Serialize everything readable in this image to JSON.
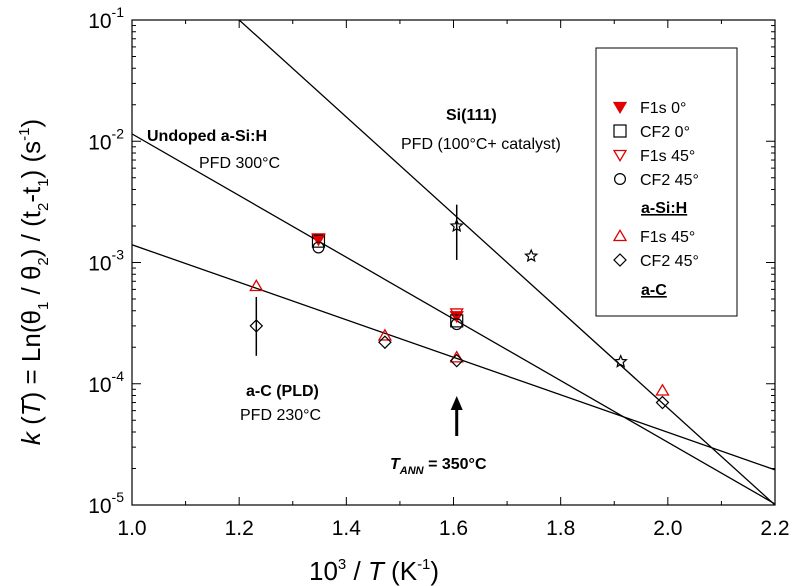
{
  "chart_data": {
    "type": "scatter",
    "title": "",
    "xlabel": {
      "prefix": "10",
      "sup": "3",
      "mid": " / ",
      "var": "T",
      "suffix": "  (K",
      "sup2": "-1",
      "end": ")"
    },
    "ylabel": {
      "k": "k",
      "open": " (",
      "T": "T",
      "mid": ") = Ln(θ",
      "s1": "1",
      "mid2": " / θ",
      "s2": "2",
      "mid3": ") / (t",
      "s3": "2",
      "mid4": "-t",
      "s4": "1",
      "mid5": ")  (s",
      "s5": "-1",
      "end": ")"
    },
    "xlim": [
      1.0,
      2.2
    ],
    "ylim": [
      1e-05,
      0.1
    ],
    "yscale": "log",
    "x_ticks": [
      "1.0",
      "1.2",
      "1.4",
      "1.6",
      "1.8",
      "2.0",
      "2.2"
    ],
    "y_ticks": [
      {
        "base": "10",
        "exp": "-5"
      },
      {
        "base": "10",
        "exp": "-4"
      },
      {
        "base": "10",
        "exp": "-3"
      },
      {
        "base": "10",
        "exp": "-2"
      },
      {
        "base": "10",
        "exp": "-1"
      }
    ],
    "series": [
      {
        "name": "F1s 0°",
        "marker": "triangle-down-filled",
        "color": "#e00000",
        "points": [
          [
            1.348,
            0.00155
          ],
          [
            1.606,
            0.00036
          ]
        ]
      },
      {
        "name": "CF2 0°",
        "marker": "square",
        "color": "#000000",
        "points": [
          [
            1.348,
            0.0015
          ],
          [
            1.606,
            0.00033
          ]
        ]
      },
      {
        "name": "F1s 45°",
        "marker": "triangle-down",
        "color": "#e00000",
        "points": [
          [
            1.348,
            0.00158
          ],
          [
            1.606,
            0.00038
          ]
        ]
      },
      {
        "name": "CF2 45°",
        "marker": "circle",
        "color": "#000000",
        "points": [
          [
            1.348,
            0.00133
          ],
          [
            1.606,
            0.00031
          ]
        ]
      },
      {
        "name": "F1s 45°",
        "marker": "triangle-up",
        "color": "#e00000",
        "points": [
          [
            1.232,
            0.00064
          ],
          [
            1.472,
            0.00025
          ],
          [
            1.606,
            0.000165
          ],
          [
            1.99,
            8.8e-05
          ]
        ]
      },
      {
        "name": "CF2 45°",
        "marker": "diamond",
        "color": "#000000",
        "points": [
          [
            1.232,
            0.0003
          ],
          [
            1.472,
            0.00022
          ],
          [
            1.606,
            0.000155
          ],
          [
            1.99,
            7e-05
          ]
        ]
      },
      {
        "name": "Si(111)",
        "marker": "star",
        "color": "#000000",
        "points": [
          [
            1.606,
            0.002
          ],
          [
            1.745,
            0.00113
          ],
          [
            1.912,
            0.000152
          ]
        ]
      }
    ],
    "error_bars": [
      {
        "x": 1.232,
        "ylow": 0.00017,
        "yhigh": 0.00052
      },
      {
        "x": 1.606,
        "ylow": 0.00105,
        "yhigh": 0.003
      }
    ],
    "fit_lines": [
      {
        "name": "Si(111)",
        "points": [
          [
            1.2,
            0.1
          ],
          [
            2.2,
            1e-05
          ]
        ]
      },
      {
        "name": "Undoped a-Si:H",
        "points": [
          [
            1.0,
            0.0115
          ],
          [
            2.2,
            1.02e-05
          ]
        ]
      },
      {
        "name": "a-C (PLD)",
        "points": [
          [
            1.0,
            0.0014
          ],
          [
            2.2,
            1.95e-05
          ]
        ]
      }
    ],
    "legend": {
      "placement": "top-right",
      "groups": [
        {
          "title": "a-Si:H",
          "entries": [
            "F1s  0°",
            "CF2  0°",
            "F1s  45°",
            "CF2 45°"
          ]
        },
        {
          "title": "a-C",
          "entries": [
            "F1s  45°",
            "CF2 45°"
          ]
        }
      ]
    },
    "annotations": {
      "si111_title": "Si(111)",
      "si111_sub": "PFD (100°C+ catalyst)",
      "asih_title": "Undoped a-Si:H",
      "asih_sub": "PFD 300°C",
      "ac_title": "a-C (PLD)",
      "ac_sub": "PFD 230°C",
      "tann_T": "T",
      "tann_sub": "ANN",
      "tann_val": " = 350°C",
      "tann_x": 1.606
    },
    "grid": false
  }
}
